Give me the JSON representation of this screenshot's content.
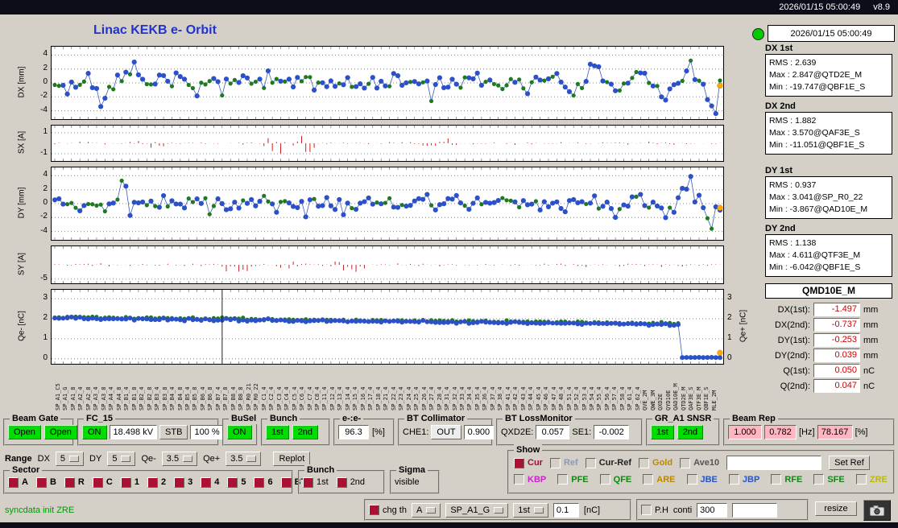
{
  "topbar": {
    "datetime": "2026/01/15 05:00:49",
    "version": "v8.9"
  },
  "header": {
    "title": "Linac KEKB e- Orbit",
    "timestamp": "2026/01/15 05:00:49"
  },
  "colors": {
    "green_button": "#00dd00",
    "pink_box": "#ffb6c1",
    "alarm_red": "#cc0000",
    "title_blue": "#2233cc",
    "led_green": "#00cc00",
    "cur_blue": "#2b50c8",
    "cur_green": "#1d7a1d",
    "steer_red": "#cc2020",
    "gold_orange": "#ffaa00"
  },
  "stats": [
    {
      "title": "DX 1st",
      "lines": [
        "RMS : 2.639",
        "Max : 2.847@QTD2E_M",
        "Min : -19.747@QBF1E_S"
      ]
    },
    {
      "title": "DX 2nd",
      "lines": [
        "RMS : 1.882",
        "Max : 3.570@QAF3E_S",
        "Min : -11.051@QBF1E_S"
      ]
    },
    {
      "title": "DY 1st",
      "lines": [
        "RMS : 0.937",
        "Max : 3.041@SP_R0_22",
        "Min : -3.867@QAD10E_M"
      ]
    },
    {
      "title": "DY 2nd",
      "lines": [
        "RMS : 1.138",
        "Max : 4.611@QTF3E_M",
        "Min : -6.042@QBF1E_S"
      ]
    }
  ],
  "monitor": {
    "title": "QMD10E_M",
    "rows": [
      {
        "label": "DX(1st):",
        "value": "-1.497",
        "unit": "mm"
      },
      {
        "label": "DX(2nd):",
        "value": "-0.737",
        "unit": "mm"
      },
      {
        "label": "DY(1st):",
        "value": "-0.253",
        "unit": "mm"
      },
      {
        "label": "DY(2nd):",
        "value": "0.039",
        "unit": "mm"
      },
      {
        "label": "Q(1st):",
        "value": "0.050",
        "unit": "nC"
      },
      {
        "label": "Q(2nd):",
        "value": "0.047",
        "unit": "nC"
      }
    ]
  },
  "chart_data": [
    {
      "id": "dx",
      "type": "scatter",
      "ylabel": "DX [mm]",
      "ylim": [
        -5.2,
        5.2
      ],
      "yticks": [
        4,
        2,
        0,
        -2,
        -4
      ],
      "n": 160,
      "seed": 7,
      "sigma": 1.15,
      "wave_from": 0.7,
      "wave_amp": 1.5,
      "green_frac": 0.35,
      "spikes": {
        "3": -1.6,
        "11": -3.4,
        "12": -2.2,
        "19": 3.0,
        "40": -1.8,
        "90": -2.6,
        "152": 3.2,
        "156": -2.4,
        "157": -3.3,
        "158": -4.4
      },
      "orange_end": -0.4,
      "line_color": "#3a5bbf",
      "dot_color": "#2b50c8",
      "dot2_color": "#1d7a1d"
    },
    {
      "id": "sx",
      "type": "bars",
      "ylabel": "SX [A]",
      "ylim": [
        -1.7,
        1.7
      ],
      "yticks": [
        1,
        -1
      ],
      "n": 160,
      "seed": 23,
      "base": 0.1,
      "clusters": [
        [
          18,
          26,
          0.35
        ],
        [
          50,
          62,
          0.85
        ],
        [
          88,
          96,
          0.35
        ]
      ],
      "color": "#cc2020"
    },
    {
      "id": "dy",
      "type": "scatter",
      "ylabel": "DY [mm]",
      "ylim": [
        -5.2,
        5.2
      ],
      "yticks": [
        4,
        2,
        0,
        -2,
        -4
      ],
      "n": 160,
      "seed": 41,
      "sigma": 1.0,
      "wave_from": 0.82,
      "wave_amp": 1.1,
      "green_frac": 0.3,
      "spikes": {
        "16": 3.3,
        "17": 2.5,
        "18": -1.7,
        "60": -1.9,
        "150": 2.2,
        "152": 3.9,
        "154": 1.2,
        "156": -2.1,
        "157": -3.6
      },
      "orange_end": -0.6,
      "line_color": "#3a5bbf",
      "dot_color": "#2b50c8",
      "dot2_color": "#1d7a1d"
    },
    {
      "id": "sy",
      "type": "bars",
      "ylabel": "SY [A]",
      "ylim": [
        -6.5,
        6.5
      ],
      "yticks": [
        -5
      ],
      "n": 160,
      "seed": 67,
      "base": 0.5,
      "neg_bias": 0.5,
      "clusters": [
        [
          40,
          48,
          2.2
        ],
        [
          52,
          58,
          1.6
        ],
        [
          66,
          74,
          2.4
        ]
      ],
      "color": "#cc2020"
    },
    {
      "id": "q",
      "type": "qplot",
      "ylabel": "Qe- [nC]",
      "ylabel_right": "Qe+ [nC]",
      "ylim": [
        -0.25,
        3.45
      ],
      "yticks": [
        3,
        2,
        1,
        0
      ],
      "yticks_right": [
        3,
        2,
        1,
        0
      ],
      "n": 160,
      "seed": 91,
      "start": 2.05,
      "end": 1.72,
      "noise": 0.05,
      "drop_index": 150,
      "drop_value": 0.06,
      "orange_end": 0.3,
      "cursor_frac": 0.254,
      "line_color": "#3a5bbf",
      "dot_color": "#2b50c8",
      "dot2_color": "#1d7a1d"
    }
  ],
  "xlabels": [
    "SP_A1_C5",
    "SP_A1_G",
    "SP_A1_8",
    "SP_A2_4",
    "SP_A2_8",
    "SP_A3_4",
    "SP_A3_8",
    "SP_A4_4",
    "SP_A4_8",
    "SP_B1_4",
    "SP_B1_8",
    "SP_B2_4",
    "SP_B2_8",
    "SP_B3_4",
    "SP_B3_8",
    "SP_B4_4",
    "SP_B4_8",
    "SP_B5_4",
    "SP_B5_8",
    "SP_B6_4",
    "SP_B6_8",
    "SP_B7_4",
    "SP_B7_8",
    "SP_B8_4",
    "SP_B8_8",
    "SP_R0_21",
    "SP_R0_22",
    "SP_C1_4",
    "SP_C2_4",
    "SP_C3_4",
    "SP_C4_4",
    "SP_C5_4",
    "SP_C6_4",
    "SP_C7_4",
    "SP_C8_4",
    "SP_11_4",
    "SP_12_4",
    "SP_13_4",
    "SP_14_4",
    "SP_15_4",
    "SP_16_4",
    "SP_17_4",
    "SP_18_4",
    "SP_21_4",
    "SP_22_4",
    "SP_23_4",
    "SP_24_4",
    "SP_25_4",
    "SP_26_4",
    "SP_27_4",
    "SP_28_4",
    "SP_31_4",
    "SP_32_4",
    "SP_33_4",
    "SP_34_4",
    "SP_35_4",
    "SP_36_4",
    "SP_37_4",
    "SP_38_4",
    "SP_41_4",
    "SP_42_4",
    "SP_43_4",
    "SP_44_4",
    "SP_45_4",
    "SP_46_4",
    "SP_47_4",
    "SP_48_4",
    "SP_51_4",
    "SP_52_4",
    "SP_53_4",
    "SP_54_4",
    "SP_55_4",
    "SP_56_4",
    "SP_57_4",
    "SP_58_4",
    "SP_61_4",
    "SP_62_4",
    "QVE_2M",
    "QWE_3M",
    "QXD2E",
    "QYD10E",
    "QAD10E_M",
    "QTD2E_M",
    "QAF3E_S",
    "QTF3E_M",
    "QBF1E_S",
    "MLE_2M"
  ],
  "row1": {
    "beam_gate": {
      "label": "Beam Gate",
      "open1": "Open",
      "open2": "Open"
    },
    "fc15": {
      "label": "FC_15",
      "on": "ON",
      "kv": "18.498 kV",
      "stb": "STB",
      "pct": "100 %"
    },
    "busel": {
      "label": "BuSel",
      "on": "ON"
    },
    "bunch": {
      "label": "Bunch",
      "b1": "1st",
      "b2": "2nd"
    },
    "ee": {
      "label": "e-:e-",
      "value": "96.3",
      "unit": "[%]"
    },
    "bt_col": {
      "label": "BT Collimator",
      "che1": "CHE1:",
      "out": "OUT",
      "value": "0.900"
    },
    "bt_loss": {
      "label": "BT LossMonitor",
      "l1": "QXD2E:",
      "v1": "0.057",
      "l2": "SE1:",
      "v2": "-0.002"
    },
    "gr": {
      "label": "GR_A1 SNSR",
      "b1": "1st",
      "b2": "2nd"
    },
    "rep": {
      "label": "Beam Rep",
      "v1": "1.000",
      "v2": "0.782",
      "hz": "[Hz]",
      "v3": "78.167",
      "pct": "[%]"
    }
  },
  "range": {
    "label": "Range",
    "dx_label": "DX",
    "dx": "5",
    "dy_label": "DY",
    "dy": "5",
    "qem_label": "Qe-",
    "qem": "3.5",
    "qep_label": "Qe+",
    "qep": "3.5",
    "replot": "Replot"
  },
  "show": {
    "label": "Show",
    "row1": [
      {
        "text": "Cur",
        "color": "#991133",
        "checked": true
      },
      {
        "text": "Ref",
        "color": "#8899bb",
        "checked": false
      },
      {
        "text": "Cur-Ref",
        "color": "#222222",
        "checked": false
      },
      {
        "text": "Gold",
        "color": "#bb8800",
        "checked": false
      },
      {
        "text": "Ave10",
        "color": "#555555",
        "checked": false
      }
    ],
    "input": "",
    "set_ref": "Set Ref",
    "row2": [
      {
        "text": "KBP",
        "color": "#cc22cc",
        "checked": false
      },
      {
        "text": "PFE",
        "color": "#118811",
        "checked": false
      },
      {
        "text": "QFE",
        "color": "#118811",
        "checked": false
      },
      {
        "text": "ARE",
        "color": "#bb8800",
        "checked": false
      },
      {
        "text": "JBE",
        "color": "#2255cc",
        "checked": false
      },
      {
        "text": "JBP",
        "color": "#2255cc",
        "checked": false
      },
      {
        "text": "RFE",
        "color": "#118811",
        "checked": false
      },
      {
        "text": "SFE",
        "color": "#118811",
        "checked": false
      },
      {
        "text": "ZRE",
        "color": "#bbbb00",
        "checked": false
      }
    ]
  },
  "sector": {
    "label": "Sector",
    "items": [
      "A",
      "B",
      "R",
      "C",
      "1",
      "2",
      "3",
      "4",
      "5",
      "6",
      "BT"
    ]
  },
  "bunch_sel": {
    "label": "Bunch",
    "items": [
      "1st",
      "2nd"
    ]
  },
  "sigma": {
    "label": "Sigma",
    "value": "visible"
  },
  "statusbar": {
    "status": "syncdata init ZRE",
    "chg_th": "chg th",
    "menu_a": "A",
    "menu_sp": "SP_A1_G",
    "menu_1st": "1st",
    "th": "0.1",
    "nc": "[nC]",
    "ph": "P.H",
    "conti": "conti",
    "v300": "300",
    "blank": "",
    "resize": "resize"
  }
}
